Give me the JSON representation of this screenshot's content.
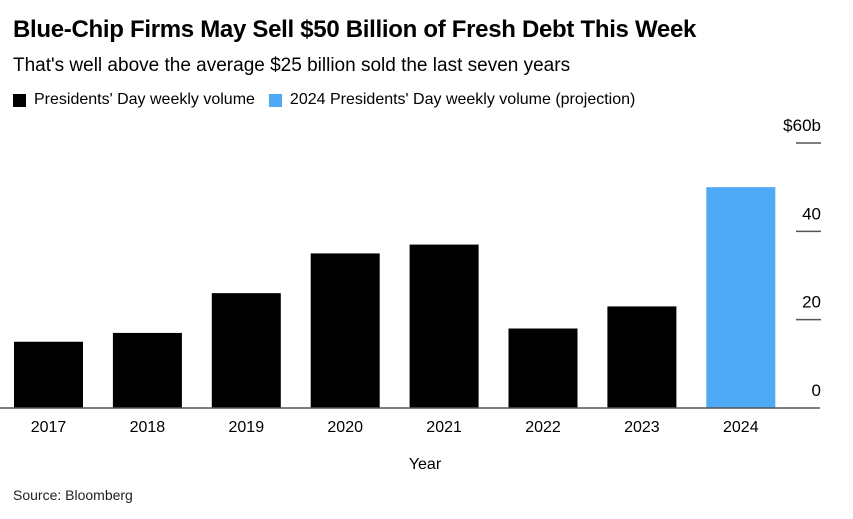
{
  "title": "Blue-Chip Firms May Sell $50 Billion of Fresh Debt This Week",
  "subtitle": "That's well above the average $25 billion sold the last seven years",
  "source": "Source: Bloomberg",
  "chart_data": {
    "type": "bar",
    "categories": [
      "2017",
      "2018",
      "2019",
      "2020",
      "2021",
      "2022",
      "2023",
      "2024"
    ],
    "values": [
      15,
      17,
      26,
      35,
      37,
      18,
      23,
      50
    ],
    "bar_colors": [
      "#000000",
      "#000000",
      "#000000",
      "#000000",
      "#000000",
      "#000000",
      "#000000",
      "#4ea9f7"
    ],
    "legend": [
      {
        "name": "Presidents' Day weekly volume",
        "color": "#000000"
      },
      {
        "name": "2024 Presidents' Day weekly volume (projection)",
        "color": "#4ea9f7"
      }
    ],
    "legend_position": "top-left",
    "xlabel": "Year",
    "ylabel": "",
    "ylim": [
      0,
      60
    ],
    "yticks": [
      "0",
      "20",
      "40",
      "$60b"
    ],
    "ytick_values": [
      0,
      20,
      40,
      60
    ],
    "y_axis_side": "right",
    "grid": false
  }
}
